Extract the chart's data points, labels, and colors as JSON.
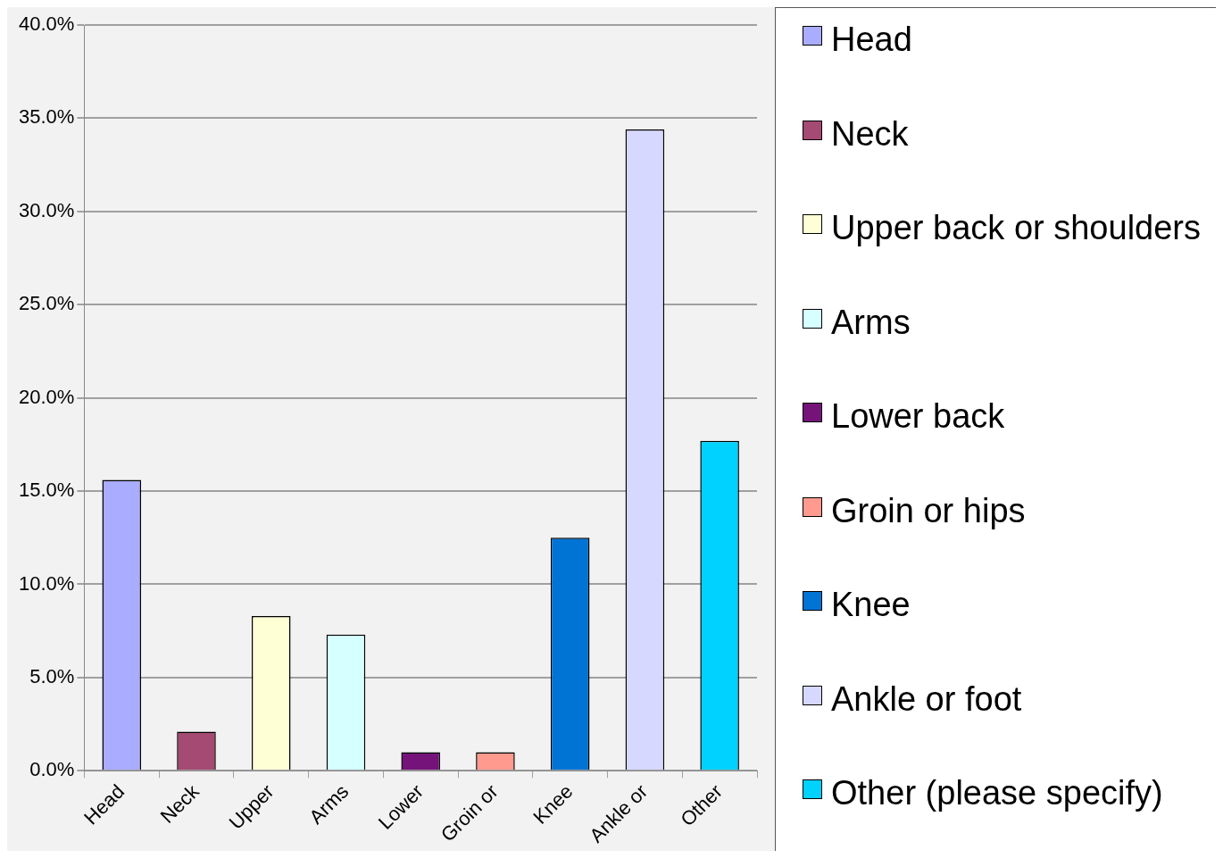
{
  "chart_data": {
    "type": "bar",
    "categories": [
      "Head",
      "Neck",
      "Upper",
      "Arms",
      "Lower",
      "Groin or",
      "Knee",
      "Ankle or",
      "Other"
    ],
    "series": [
      {
        "name": "Head",
        "color": "#a9acff",
        "values": [
          15.6,
          null,
          null,
          null,
          null,
          null,
          null,
          null,
          null
        ]
      },
      {
        "name": "Neck",
        "color": "#a54a72",
        "values": [
          null,
          2.1,
          null,
          null,
          null,
          null,
          null,
          null,
          null
        ]
      },
      {
        "name": "Upper back or shoulders",
        "color": "#ffffd6",
        "values": [
          null,
          null,
          8.3,
          null,
          null,
          null,
          null,
          null,
          null
        ]
      },
      {
        "name": "Arms",
        "color": "#d6ffff",
        "values": [
          null,
          null,
          null,
          7.3,
          null,
          null,
          null,
          null,
          null
        ]
      },
      {
        "name": "Lower back",
        "color": "#75137a",
        "values": [
          null,
          null,
          null,
          null,
          1.0,
          null,
          null,
          null,
          null
        ]
      },
      {
        "name": "Groin or hips",
        "color": "#ff9a8f",
        "values": [
          null,
          null,
          null,
          null,
          null,
          1.0,
          null,
          null,
          null
        ]
      },
      {
        "name": "Knee",
        "color": "#0074d4",
        "values": [
          null,
          null,
          null,
          null,
          null,
          null,
          12.5,
          null,
          null
        ]
      },
      {
        "name": "Ankle or foot",
        "color": "#d6d8ff",
        "values": [
          null,
          null,
          null,
          null,
          null,
          null,
          null,
          34.4,
          null
        ]
      },
      {
        "name": "Other (please specify)",
        "color": "#00d2ff",
        "values": [
          null,
          null,
          null,
          null,
          null,
          null,
          null,
          null,
          17.7
        ]
      }
    ],
    "ylim": [
      0,
      40
    ],
    "yticks": [
      {
        "value": 0,
        "label": "0.0%"
      },
      {
        "value": 5,
        "label": "5.0%"
      },
      {
        "value": 10,
        "label": "10.0%"
      },
      {
        "value": 15,
        "label": "15.0%"
      },
      {
        "value": 20,
        "label": "20.0%"
      },
      {
        "value": 25,
        "label": "25.0%"
      },
      {
        "value": 30,
        "label": "30.0%"
      },
      {
        "value": 35,
        "label": "35.0%"
      },
      {
        "value": 40,
        "label": "40.0%"
      }
    ],
    "grid": "y",
    "legend": "right"
  }
}
